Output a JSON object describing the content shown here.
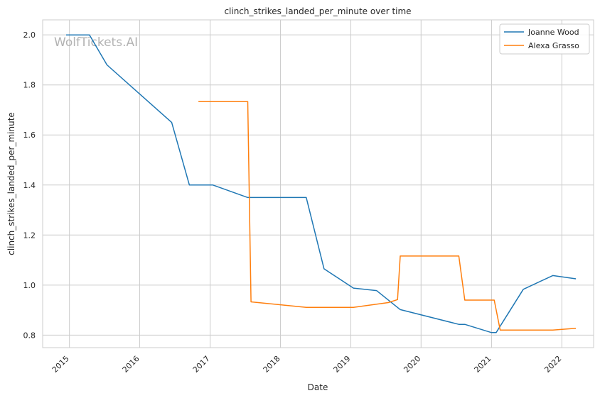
{
  "chart_data": {
    "type": "line",
    "title": "clinch_strikes_landed_per_minute over time",
    "xlabel": "Date",
    "ylabel": "clinch_strikes_landed_per_minute",
    "watermark": "WolfTickets.AI",
    "x_ticks": [
      "2015",
      "2016",
      "2017",
      "2018",
      "2019",
      "2020",
      "2021",
      "2022"
    ],
    "y_ticks": [
      "0.8",
      "1.0",
      "1.2",
      "1.4",
      "1.6",
      "1.8",
      "2.0"
    ],
    "xlim": [
      "2014-08-15",
      "2022-06-15"
    ],
    "ylim": [
      0.75,
      2.06
    ],
    "grid": true,
    "legend_position": "top-right",
    "series": [
      {
        "name": "Joanne Wood",
        "color": "#1f77b4",
        "points": [
          [
            "2014-12-15",
            2.0
          ],
          [
            "2015-04-15",
            2.0
          ],
          [
            "2015-07-15",
            1.88
          ],
          [
            "2016-06-15",
            1.65
          ],
          [
            "2016-09-15",
            1.4
          ],
          [
            "2017-01-15",
            1.4
          ],
          [
            "2017-07-15",
            1.35
          ],
          [
            "2018-05-15",
            1.35
          ],
          [
            "2018-08-15",
            1.065
          ],
          [
            "2019-01-15",
            0.988
          ],
          [
            "2019-05-15",
            0.978
          ],
          [
            "2019-09-15",
            0.902
          ],
          [
            "2020-07-15",
            0.843
          ],
          [
            "2020-08-15",
            0.843
          ],
          [
            "2021-01-01",
            0.81
          ],
          [
            "2021-01-25",
            0.81
          ],
          [
            "2021-06-15",
            0.983
          ],
          [
            "2021-11-15",
            1.038
          ],
          [
            "2022-03-15",
            1.025
          ]
        ]
      },
      {
        "name": "Alexa Grasso",
        "color": "#ff7f0e",
        "points": [
          [
            "2016-11-01",
            1.733
          ],
          [
            "2017-07-15",
            1.733
          ],
          [
            "2017-08-01",
            0.933
          ],
          [
            "2018-05-15",
            0.911
          ],
          [
            "2019-01-15",
            0.911
          ],
          [
            "2019-07-15",
            0.93
          ],
          [
            "2019-09-01",
            0.942
          ],
          [
            "2019-09-15",
            1.116
          ],
          [
            "2020-07-15",
            1.116
          ],
          [
            "2020-08-15",
            0.94
          ],
          [
            "2021-01-15",
            0.94
          ],
          [
            "2021-02-15",
            0.82
          ],
          [
            "2021-11-15",
            0.82
          ],
          [
            "2022-03-15",
            0.827
          ]
        ]
      }
    ]
  }
}
